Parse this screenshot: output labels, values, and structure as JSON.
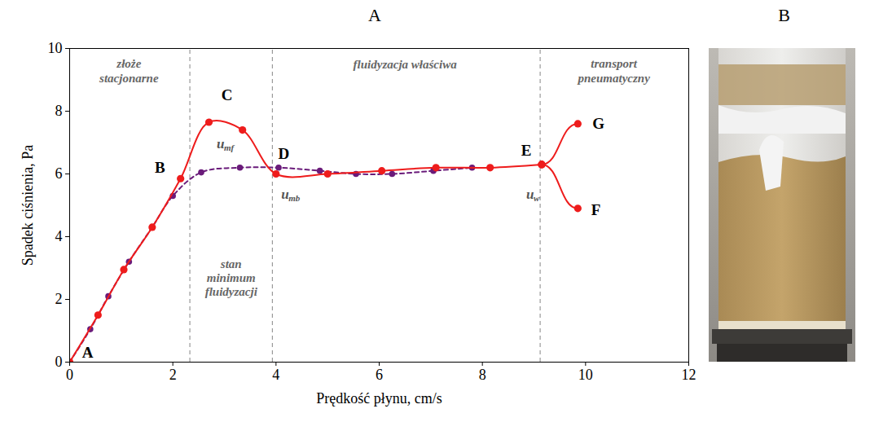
{
  "chart_data": {
    "type": "line",
    "panel_label": "A",
    "xlabel": "Prędkość płynu, cm/s",
    "ylabel": "Spadek ciśnienia, Pa",
    "xlim": [
      0,
      12
    ],
    "xticks": [
      0,
      2,
      4,
      6,
      8,
      10,
      12
    ],
    "ylim": [
      0,
      10
    ],
    "yticks": [
      0,
      2,
      4,
      6,
      8,
      10
    ],
    "grid": false,
    "series": [
      {
        "color": "#6a1b7a",
        "line_style": "dashed",
        "marker": "circle",
        "x": [
          0,
          0.4,
          0.75,
          1.15,
          1.6,
          2.0,
          2.55,
          3.3,
          4.05,
          4.85,
          5.55,
          6.25,
          7.05,
          7.8
        ],
        "values": [
          0,
          1.05,
          2.1,
          3.2,
          4.3,
          5.3,
          6.05,
          6.2,
          6.2,
          6.1,
          6.0,
          6.0,
          6.1,
          6.2
        ]
      },
      {
        "color": "#ee1c1c",
        "line_style": "solid",
        "marker": "circle",
        "x": [
          0,
          0.55,
          1.05,
          1.6,
          2.15,
          2.7,
          3.35,
          4.0,
          5.0,
          6.05,
          7.1,
          8.15,
          9.15
        ],
        "values": [
          0,
          1.5,
          2.95,
          4.3,
          5.85,
          7.65,
          7.4,
          6.0,
          6.0,
          6.1,
          6.2,
          6.2,
          6.3
        ]
      },
      {
        "color": "#ee1c1c",
        "line_style": "solid",
        "marker": "circle",
        "x": [
          9.15,
          9.85
        ],
        "values": [
          6.3,
          7.6
        ]
      },
      {
        "color": "#ee1c1c",
        "line_style": "solid",
        "marker": "circle",
        "x": [
          9.15,
          9.85
        ],
        "values": [
          6.3,
          4.9
        ]
      }
    ],
    "dividers": [
      2.33,
      3.93,
      9.12
    ],
    "regions": [
      {
        "text": "złoże\nstacjonarne",
        "x": 1.15,
        "y": 9.3
      },
      {
        "text": "stan\nminimum\nfluidyzacji",
        "x": 3.13,
        "y": 2.7
      },
      {
        "text": "fluidyzacja właściwa",
        "x": 6.5,
        "y": 9.5
      },
      {
        "text": "transport\npneumatyczny",
        "x": 10.55,
        "y": 9.3
      }
    ],
    "point_labels": [
      {
        "text": "A",
        "x": 0.35,
        "y": 0.3
      },
      {
        "text": "B",
        "x": 1.75,
        "y": 6.2
      },
      {
        "text": "C",
        "x": 3.05,
        "y": 8.5
      },
      {
        "text": "D",
        "x": 4.15,
        "y": 6.65
      },
      {
        "text": "E",
        "x": 8.85,
        "y": 6.75
      },
      {
        "text": "F",
        "x": 10.2,
        "y": 4.85
      },
      {
        "text": "G",
        "x": 10.25,
        "y": 7.6
      }
    ],
    "velocity_labels": [
      {
        "text": "u",
        "subscript": "mf",
        "x": 2.85,
        "y": 6.95
      },
      {
        "text": "u",
        "subscript": "mb",
        "x": 4.1,
        "y": 5.35
      },
      {
        "text": "u",
        "subscript": "w",
        "x": 8.85,
        "y": 5.35
      }
    ]
  },
  "photo": {
    "panel_label": "B"
  }
}
